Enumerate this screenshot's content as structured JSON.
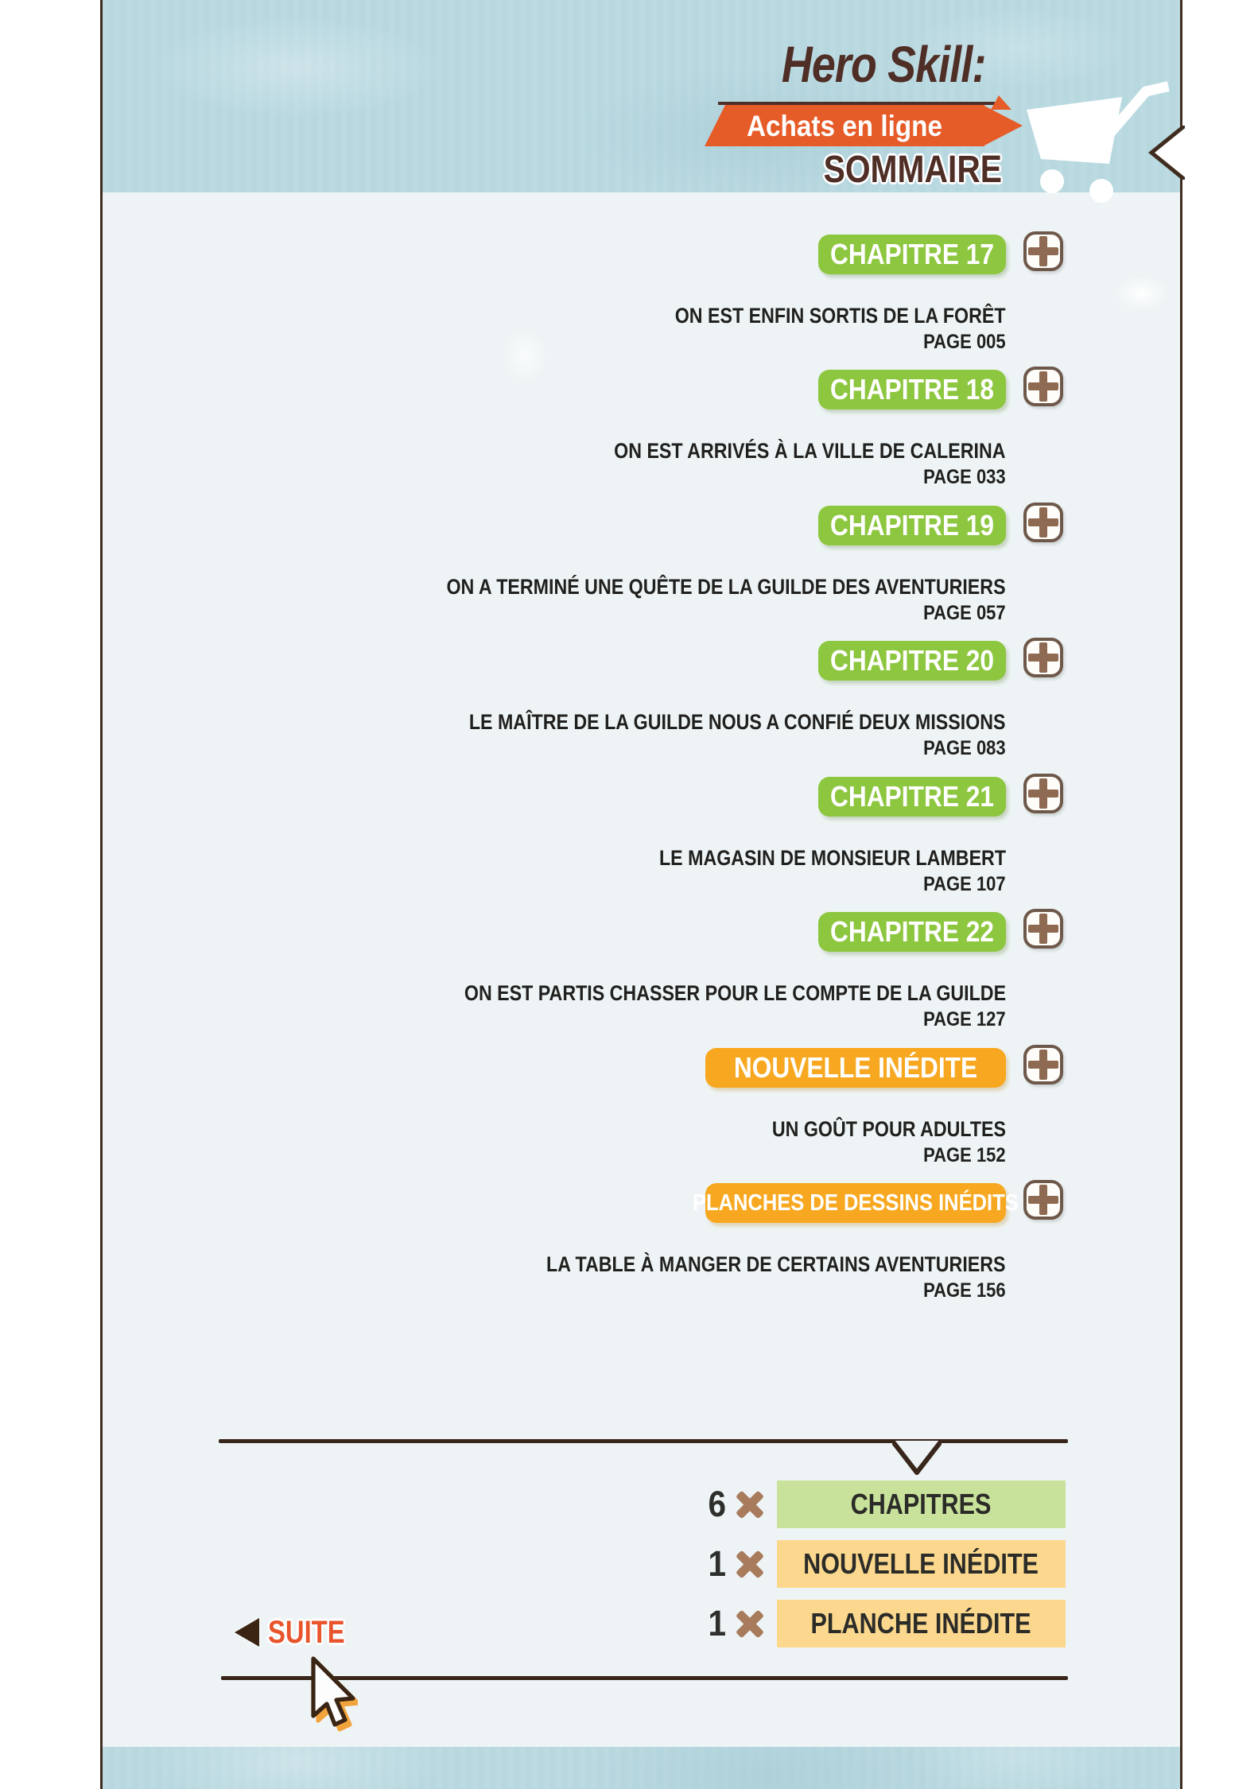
{
  "header": {
    "title": "Hero Skill:",
    "banner_label": "Achats en ligne",
    "section_label": "SOMMAIRE"
  },
  "toc": {
    "expand_symbol": "+",
    "items": [
      {
        "type": "chapter",
        "label": "CHAPITRE 17",
        "subtitle": "ON EST ENFIN SORTIS DE LA FORÊT",
        "page": "PAGE 005"
      },
      {
        "type": "chapter",
        "label": "CHAPITRE 18",
        "subtitle": "ON EST ARRIVÉS À LA VILLE DE CALERINA",
        "page": "PAGE 033"
      },
      {
        "type": "chapter",
        "label": "CHAPITRE 19",
        "subtitle": "ON A TERMINÉ UNE QUÊTE DE LA GUILDE DES AVENTURIERS",
        "page": "PAGE 057"
      },
      {
        "type": "chapter",
        "label": "CHAPITRE 20",
        "subtitle": "LE MAÎTRE DE LA GUILDE NOUS A CONFIÉ DEUX MISSIONS",
        "page": "PAGE 083"
      },
      {
        "type": "chapter",
        "label": "CHAPITRE 21",
        "subtitle": "LE MAGASIN DE MONSIEUR LAMBERT",
        "page": "PAGE 107"
      },
      {
        "type": "chapter",
        "label": "CHAPITRE 22",
        "subtitle": "ON EST PARTIS CHASSER POUR LE COMPTE DE LA GUILDE",
        "page": "PAGE 127"
      },
      {
        "type": "special",
        "label": "NOUVELLE INÉDITE",
        "subtitle": "UN GOÛT POUR ADULTES",
        "page": "PAGE 152"
      },
      {
        "type": "special",
        "label": "PLANCHES DE DESSINS INÉDITS",
        "subtitle": "LA TABLE À MANGER DE CERTAINS AVENTURIERS",
        "page": "PAGE 156"
      }
    ]
  },
  "summary": {
    "multiply_symbol": "✕",
    "rows": [
      {
        "count": "6",
        "label": "CHAPITRES",
        "style": "green"
      },
      {
        "count": "1",
        "label": "NOUVELLE INÉDITE",
        "style": "orange"
      },
      {
        "count": "1",
        "label": "PLANCHE INÉDITE",
        "style": "orange"
      }
    ]
  },
  "footer": {
    "continue_label": "SUITE"
  },
  "icons": {
    "cart": "shopping-cart-icon",
    "plus": "plus-icon",
    "multiply": "multiply-x-icon",
    "back_arrow": "left-triangle-icon",
    "cursor": "mouse-cursor-icon"
  },
  "colors": {
    "band_blue": "#b8d8e0",
    "content_bg": "#eef4f5",
    "chapter_green": "#8dc63f",
    "special_orange": "#f7a820",
    "banner_orange": "#e65c28",
    "suite_orange": "#e8542c",
    "brown_dark": "#4f2e26",
    "summary_green": "#c9e29b",
    "summary_orange": "#fbd88d"
  }
}
